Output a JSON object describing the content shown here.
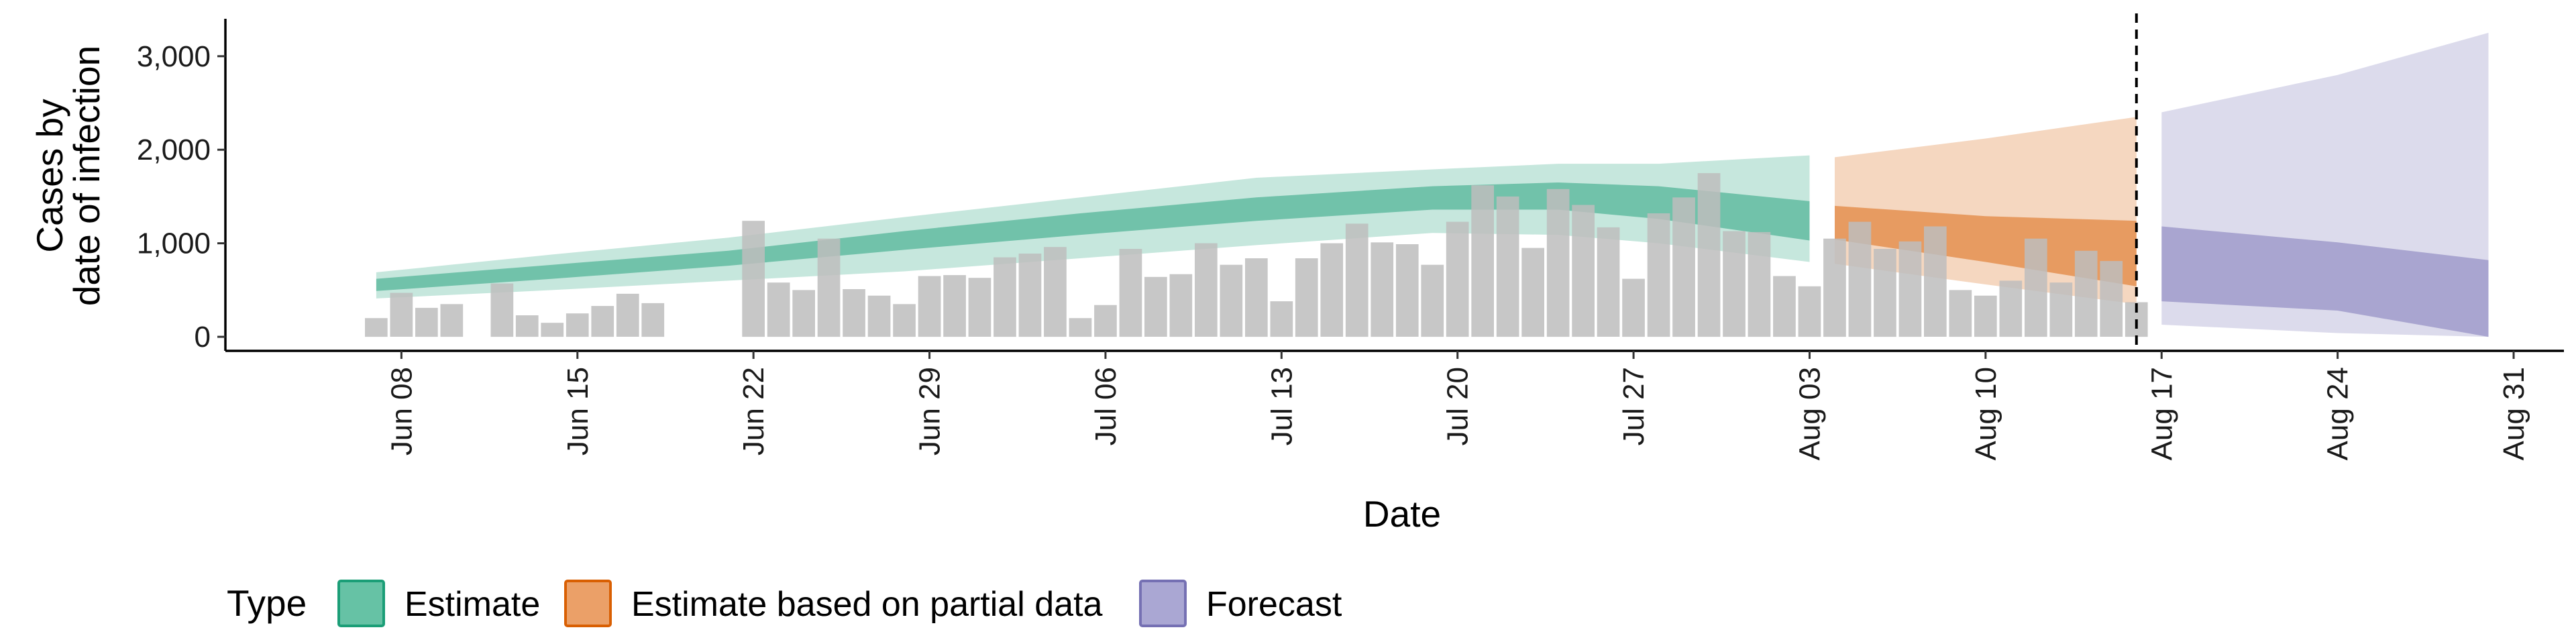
{
  "chart_data": {
    "type": "area",
    "title": "",
    "xlabel": "Date",
    "ylabel_lines": [
      "Cases by",
      "date of infection"
    ],
    "x_range": [
      "2020-06-01",
      "2020-09-02"
    ],
    "ylim": [
      -150,
      3400
    ],
    "y_ticks": [
      0,
      1000,
      2000,
      3000
    ],
    "y_tick_labels": [
      "0",
      "1,000",
      "2,000",
      "3,000"
    ],
    "x_ticks": [
      "2020-06-08",
      "2020-06-15",
      "2020-06-22",
      "2020-06-29",
      "2020-07-06",
      "2020-07-13",
      "2020-07-20",
      "2020-07-27",
      "2020-08-03",
      "2020-08-10",
      "2020-08-17",
      "2020-08-24",
      "2020-08-31"
    ],
    "x_tick_labels": [
      "Jun 08",
      "Jun 15",
      "Jun 22",
      "Jun 29",
      "Jul 06",
      "Jul 13",
      "Jul 20",
      "Jul 27",
      "Aug 03",
      "Aug 10",
      "Aug 17",
      "Aug 24",
      "Aug 31"
    ],
    "forecast_line_date": "2020-08-16",
    "grid": false,
    "legend": {
      "title": "Type",
      "position": "bottom",
      "items": [
        {
          "label": "Estimate",
          "fill": "#66c2a5",
          "border": "#1b9e77"
        },
        {
          "label": "Estimate based on partial data",
          "fill": "#eba068",
          "border": "#d95f02"
        },
        {
          "label": "Forecast",
          "fill": "#aaa7d3",
          "border": "#7570b3"
        }
      ]
    },
    "colors": {
      "bars": "#bdbdbd",
      "estimate": "#1b9e77",
      "partial": "#d95f02",
      "forecast": "#7570b3"
    },
    "observed_cases": {
      "dates": [
        "2020-06-07",
        "2020-06-08",
        "2020-06-09",
        "2020-06-10",
        "2020-06-12",
        "2020-06-13",
        "2020-06-14",
        "2020-06-15",
        "2020-06-16",
        "2020-06-17",
        "2020-06-18",
        "2020-06-22",
        "2020-06-23",
        "2020-06-24",
        "2020-06-25",
        "2020-06-26",
        "2020-06-27",
        "2020-06-28",
        "2020-06-29",
        "2020-06-30",
        "2020-07-01",
        "2020-07-02",
        "2020-07-03",
        "2020-07-04",
        "2020-07-05",
        "2020-07-06",
        "2020-07-07",
        "2020-07-08",
        "2020-07-09",
        "2020-07-10",
        "2020-07-11",
        "2020-07-12",
        "2020-07-13",
        "2020-07-14",
        "2020-07-15",
        "2020-07-16",
        "2020-07-17",
        "2020-07-18",
        "2020-07-19",
        "2020-07-20",
        "2020-07-21",
        "2020-07-22",
        "2020-07-23",
        "2020-07-24",
        "2020-07-25",
        "2020-07-26",
        "2020-07-27",
        "2020-07-28",
        "2020-07-29",
        "2020-07-30",
        "2020-07-31",
        "2020-08-01",
        "2020-08-02",
        "2020-08-03",
        "2020-08-04",
        "2020-08-05",
        "2020-08-06",
        "2020-08-07",
        "2020-08-08",
        "2020-08-09",
        "2020-08-10",
        "2020-08-11",
        "2020-08-12",
        "2020-08-13",
        "2020-08-14",
        "2020-08-15",
        "2020-08-16"
      ],
      "values": [
        200,
        470,
        310,
        350,
        570,
        230,
        150,
        250,
        330,
        460,
        360,
        1240,
        580,
        500,
        1050,
        510,
        440,
        350,
        650,
        660,
        630,
        850,
        890,
        960,
        200,
        340,
        940,
        640,
        670,
        1000,
        770,
        840,
        380,
        840,
        1000,
        1210,
        1010,
        990,
        770,
        1230,
        1620,
        1500,
        950,
        1580,
        1410,
        1170,
        620,
        1320,
        1490,
        1750,
        1130,
        1120,
        650,
        540,
        1050,
        1230,
        940,
        1020,
        1180,
        500,
        440,
        600,
        1050,
        580,
        920,
        810,
        370
      ]
    },
    "series": [
      {
        "name": "Estimate",
        "dates": [
          "2020-06-07",
          "2020-06-14",
          "2020-06-21",
          "2020-06-28",
          "2020-07-05",
          "2020-07-12",
          "2020-07-19",
          "2020-07-24",
          "2020-07-28",
          "2020-08-03"
        ],
        "lower_90": [
          410,
          500,
          600,
          700,
          840,
          980,
          1110,
          1090,
          1000,
          800
        ],
        "lower_50": [
          490,
          620,
          760,
          930,
          1090,
          1240,
          1360,
          1360,
          1260,
          1030
        ],
        "upper_50": [
          620,
          770,
          920,
          1130,
          1320,
          1490,
          1610,
          1650,
          1610,
          1450
        ],
        "upper_90": [
          690,
          880,
          1060,
          1280,
          1490,
          1700,
          1790,
          1850,
          1850,
          1940
        ]
      },
      {
        "name": "Estimate based on partial data",
        "dates": [
          "2020-08-04",
          "2020-08-10",
          "2020-08-16"
        ],
        "lower_90": [
          780,
          560,
          350
        ],
        "lower_50": [
          1040,
          800,
          540
        ],
        "upper_50": [
          1400,
          1290,
          1240
        ],
        "upper_90": [
          1920,
          2120,
          2350
        ]
      },
      {
        "name": "Forecast",
        "dates": [
          "2020-08-17",
          "2020-08-24",
          "2020-08-30"
        ],
        "lower_90": [
          130,
          40,
          0
        ],
        "lower_50": [
          380,
          280,
          0
        ],
        "upper_50": [
          1180,
          1010,
          820
        ],
        "upper_90": [
          2400,
          2800,
          3250
        ]
      }
    ]
  }
}
